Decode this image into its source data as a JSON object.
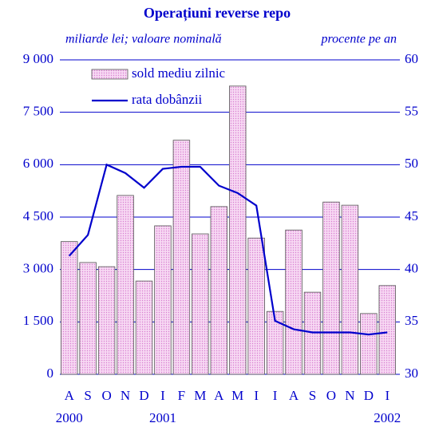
{
  "chart_data": {
    "type": "bar+line",
    "title": "Operațiuni reverse repo",
    "ylabel": "miliarde lei; valoare nominală",
    "y2label": "procente pe an",
    "categories": [
      "A",
      "S",
      "O",
      "N",
      "D",
      "I",
      "F",
      "M",
      "A",
      "M",
      "I",
      "I",
      "A",
      "S",
      "O",
      "N",
      "D",
      "I"
    ],
    "years": [
      "2000",
      null,
      null,
      null,
      null,
      "2001",
      null,
      null,
      null,
      null,
      null,
      null,
      null,
      null,
      null,
      null,
      null,
      "2002"
    ],
    "series": [
      {
        "name": "sold mediu zilnic",
        "type": "bar",
        "color": "#f4c6ee",
        "axis": "y",
        "values": [
          3800,
          3200,
          3080,
          5120,
          2670,
          4250,
          6700,
          4020,
          4800,
          8250,
          3900,
          1800,
          4130,
          2350,
          4930,
          4840,
          1740,
          2540
        ]
      },
      {
        "name": "rata dobânzii",
        "type": "line",
        "color": "#0000cc",
        "axis": "y2",
        "values": [
          41.3,
          43.3,
          50.0,
          49.2,
          47.8,
          49.6,
          49.8,
          49.8,
          48.0,
          47.3,
          46.1,
          35.1,
          34.3,
          34.0,
          34.0,
          34.0,
          33.8,
          34.0
        ]
      }
    ],
    "ylim": [
      0,
      9000
    ],
    "yticks": [
      0,
      {
        "value": 1500,
        "label": "1 500"
      },
      {
        "value": 3000,
        "label": "3 000"
      },
      {
        "value": 4500,
        "label": "4 500"
      },
      {
        "value": 6000,
        "label": "6 000"
      },
      {
        "value": 7500,
        "label": "7 500"
      },
      {
        "value": 9000,
        "label": "9 000"
      }
    ],
    "y2lim": [
      30,
      60
    ],
    "y2ticks": [
      30,
      35,
      40,
      45,
      50,
      55,
      60
    ],
    "grid": true,
    "legend": "upper left"
  }
}
